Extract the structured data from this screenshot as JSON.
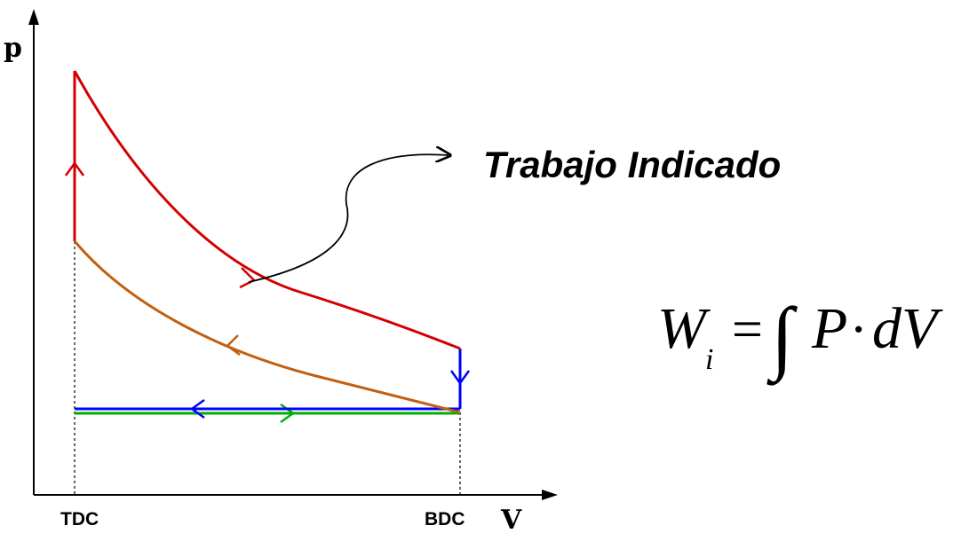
{
  "axes": {
    "y_label": "p",
    "x_label": "V"
  },
  "ticks": {
    "tdc": "TDC",
    "bdc": "BDC"
  },
  "annotation": {
    "label": "Trabajo Indicado"
  },
  "formula": {
    "lhs_var": "W",
    "lhs_sub": "i",
    "equals": "=",
    "integral": "∫",
    "term1": "P",
    "dot": "·",
    "term2": "dV"
  },
  "colors": {
    "expansion": "#d40000",
    "compression": "#c06010",
    "exhaust": "#0000ff",
    "intake": "#00b000",
    "axis": "#000000"
  }
}
